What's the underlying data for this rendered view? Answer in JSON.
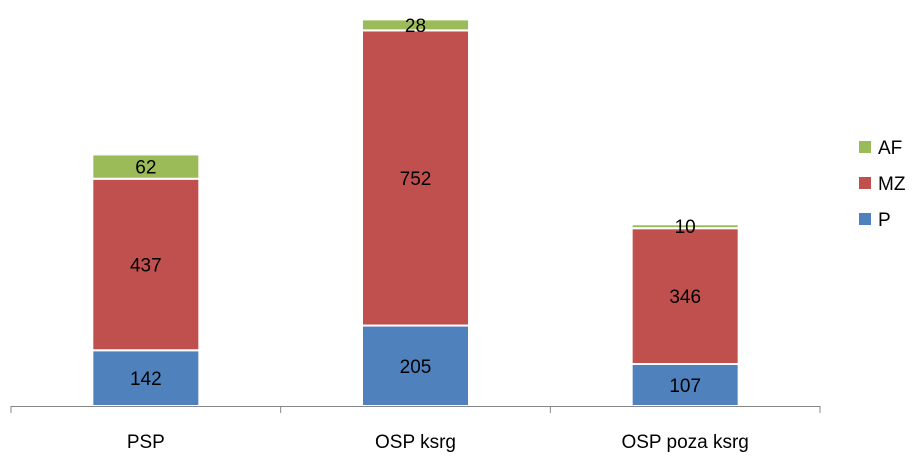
{
  "chart_data": {
    "type": "bar",
    "stacked": true,
    "categories": [
      "PSP",
      "OSP ksrg",
      "OSP poza ksrg"
    ],
    "series": [
      {
        "name": "P",
        "values": [
          142,
          205,
          107
        ],
        "color": "#4F81BD"
      },
      {
        "name": "MZ",
        "values": [
          437,
          752,
          346
        ],
        "color": "#C0504D"
      },
      {
        "name": "AF",
        "values": [
          62,
          28,
          10
        ],
        "color": "#9BBB59"
      }
    ],
    "data_labels": true,
    "grid": false,
    "legend": {
      "position": "right",
      "order": [
        "AF",
        "MZ",
        "P"
      ]
    }
  }
}
